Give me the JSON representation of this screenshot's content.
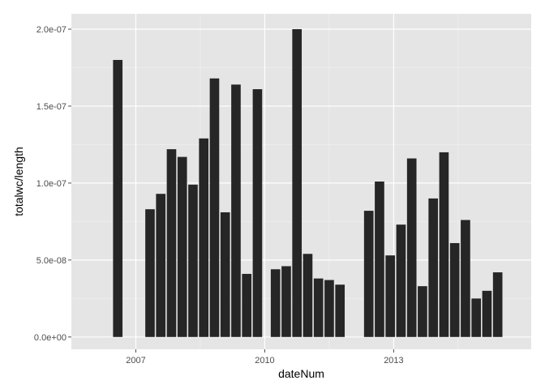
{
  "chart_data": {
    "type": "bar",
    "xlabel": "dateNum",
    "ylabel": "totalwc/length",
    "xlim": [
      2005.5,
      2016.2
    ],
    "ylim": [
      -8e-09,
      2.1e-07
    ],
    "x_ticks": [
      {
        "value": 2007,
        "label": "2007"
      },
      {
        "value": 2010,
        "label": "2010"
      },
      {
        "value": 2013,
        "label": "2013"
      }
    ],
    "y_ticks": [
      {
        "value": 0,
        "label": "0.0e+00"
      },
      {
        "value": 5e-08,
        "label": "5.0e-08"
      },
      {
        "value": 1e-07,
        "label": "1.0e-07"
      },
      {
        "value": 1.5e-07,
        "label": "1.5e-07"
      },
      {
        "value": 2e-07,
        "label": "2.0e-07"
      }
    ],
    "bar_width": 0.22,
    "bars": [
      {
        "x": 2006.58,
        "value": 1.8e-07
      },
      {
        "x": 2007.33,
        "value": 8.3e-08
      },
      {
        "x": 2007.58,
        "value": 9.3e-08
      },
      {
        "x": 2007.83,
        "value": 1.22e-07
      },
      {
        "x": 2008.08,
        "value": 1.17e-07
      },
      {
        "x": 2008.33,
        "value": 9.9e-08
      },
      {
        "x": 2008.58,
        "value": 1.29e-07
      },
      {
        "x": 2008.83,
        "value": 1.68e-07
      },
      {
        "x": 2009.08,
        "value": 8.1e-08
      },
      {
        "x": 2009.33,
        "value": 1.64e-07
      },
      {
        "x": 2009.58,
        "value": 4.1e-08
      },
      {
        "x": 2009.83,
        "value": 1.61e-07
      },
      {
        "x": 2010.25,
        "value": 4.4e-08
      },
      {
        "x": 2010.5,
        "value": 4.6e-08
      },
      {
        "x": 2010.75,
        "value": 2e-07
      },
      {
        "x": 2011.0,
        "value": 5.4e-08
      },
      {
        "x": 2011.25,
        "value": 3.8e-08
      },
      {
        "x": 2011.5,
        "value": 3.7e-08
      },
      {
        "x": 2011.75,
        "value": 3.4e-08
      },
      {
        "x": 2012.42,
        "value": 8.2e-08
      },
      {
        "x": 2012.67,
        "value": 1.01e-07
      },
      {
        "x": 2012.92,
        "value": 5.3e-08
      },
      {
        "x": 2013.17,
        "value": 7.3e-08
      },
      {
        "x": 2013.42,
        "value": 1.16e-07
      },
      {
        "x": 2013.67,
        "value": 3.3e-08
      },
      {
        "x": 2013.92,
        "value": 9e-08
      },
      {
        "x": 2014.17,
        "value": 1.2e-07
      },
      {
        "x": 2014.42,
        "value": 6.1e-08
      },
      {
        "x": 2014.67,
        "value": 7.6e-08
      },
      {
        "x": 2014.92,
        "value": 2.5e-08
      },
      {
        "x": 2015.17,
        "value": 3e-08
      },
      {
        "x": 2015.42,
        "value": 4.2e-08
      }
    ],
    "grid": true,
    "colors": {
      "panel": "#e5e5e5",
      "grid_major": "#ffffff",
      "grid_minor": "#f2f2f2",
      "bar": "#262626"
    }
  }
}
